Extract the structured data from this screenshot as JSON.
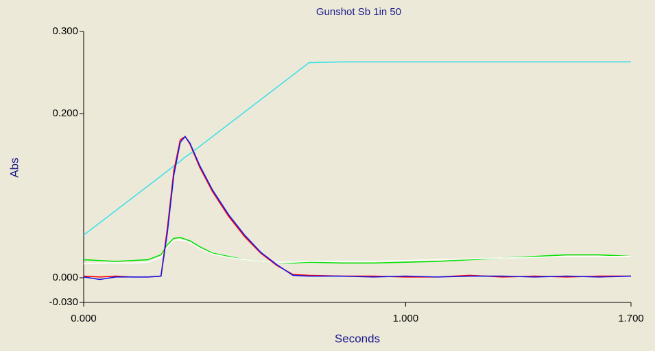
{
  "chart_data": {
    "type": "line",
    "title": "Gunshot Sb 1in 50",
    "xlabel": "Seconds",
    "ylabel": "Abs",
    "x": [
      0,
      0.05,
      0.1,
      0.15,
      0.2,
      0.24,
      0.26,
      0.28,
      0.3,
      0.315,
      0.33,
      0.36,
      0.4,
      0.45,
      0.5,
      0.55,
      0.6,
      0.65,
      0.7,
      0.8,
      0.9,
      1.0,
      1.1,
      1.2,
      1.3,
      1.4,
      1.5,
      1.6,
      1.7
    ],
    "series": [
      {
        "color": "#40e0e8",
        "values": [
          0.052,
          0.067,
          0.082,
          0.097,
          0.112,
          0.124,
          0.13,
          0.136,
          0.142,
          0.147,
          0.151,
          0.16,
          0.172,
          0.187,
          0.202,
          0.217,
          0.232,
          0.247,
          0.262,
          0.263,
          0.263,
          0.263,
          0.263,
          0.263,
          0.263,
          0.263,
          0.263,
          0.263,
          0.263
        ]
      },
      {
        "color": "#00e000",
        "values": [
          0.022,
          0.021,
          0.02,
          0.021,
          0.022,
          0.028,
          0.04,
          0.048,
          0.049,
          0.047,
          0.045,
          0.038,
          0.03,
          0.026,
          0.022,
          0.02,
          0.019,
          0.018,
          0.019,
          0.018,
          0.018,
          0.019,
          0.02,
          0.022,
          0.024,
          0.026,
          0.028,
          0.028,
          0.026
        ]
      },
      {
        "color": "#ffffff",
        "values": [
          0.017,
          0.018,
          0.018,
          0.018,
          0.019,
          0.025,
          0.038,
          0.046,
          0.046,
          0.045,
          0.043,
          0.036,
          0.029,
          0.025,
          0.022,
          0.02,
          0.019,
          0.019,
          0.02,
          0.02,
          0.02,
          0.021,
          0.022,
          0.023,
          0.024,
          0.025,
          0.026,
          0.026,
          0.026
        ]
      },
      {
        "color": "#ff0000",
        "values": [
          0.002,
          0.001,
          0.002,
          0.001,
          0.001,
          0.002,
          0.06,
          0.13,
          0.168,
          0.172,
          0.163,
          0.135,
          0.105,
          0.075,
          0.05,
          0.03,
          0.015,
          0.004,
          0.003,
          0.002,
          0.002,
          0.001,
          0.001,
          0.003,
          0.001,
          0.002,
          0.001,
          0.002,
          0.002
        ]
      },
      {
        "color": "#1818e8",
        "values": [
          0.001,
          -0.002,
          0.001,
          0.001,
          0.001,
          0.002,
          0.055,
          0.125,
          0.165,
          0.172,
          0.164,
          0.137,
          0.107,
          0.077,
          0.052,
          0.031,
          0.016,
          0.003,
          0.002,
          0.002,
          0.001,
          0.002,
          0.001,
          0.002,
          0.002,
          0.001,
          0.002,
          0.001,
          0.002
        ]
      }
    ],
    "xlim": [
      0,
      1.7
    ],
    "ylim": [
      -0.03,
      0.3
    ],
    "xticks": [
      {
        "value": 0,
        "label": "0.000"
      },
      {
        "value": 1,
        "label": "1.000"
      },
      {
        "value": 1.7,
        "label": "1.700"
      }
    ],
    "yticks": [
      {
        "value": -0.03,
        "label": "-0.030"
      },
      {
        "value": 0,
        "label": "0.000"
      },
      {
        "value": 0.2,
        "label": "0.200"
      },
      {
        "value": 0.3,
        "label": "0.300"
      }
    ],
    "grid": false
  }
}
